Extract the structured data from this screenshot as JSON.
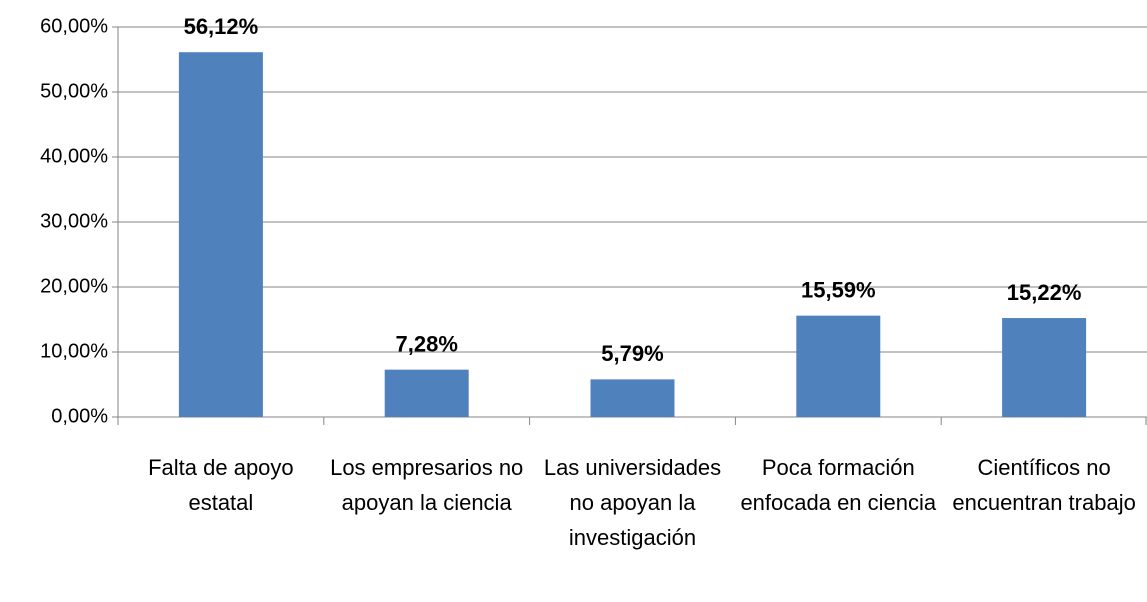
{
  "chart_data": {
    "type": "bar",
    "categories": [
      "Falta de apoyo estatal",
      "Los empresarios no apoyan la ciencia",
      "Las universidades no apoyan la investigación",
      "Poca formación enfocada en ciencia",
      "Científicos no encuentran trabajo"
    ],
    "values": [
      56.12,
      7.28,
      5.79,
      15.59,
      15.22
    ],
    "value_labels": [
      "56,12%",
      "7,28%",
      "5,79%",
      "15,59%",
      "15,22%"
    ],
    "color": "#4f81bd",
    "ylim": [
      0,
      60
    ],
    "yticks": [
      {
        "value": 0,
        "label": "0,00%"
      },
      {
        "value": 10,
        "label": "10,00%"
      },
      {
        "value": 20,
        "label": "20,00%"
      },
      {
        "value": 30,
        "label": "30,00%"
      },
      {
        "value": 40,
        "label": "40,00%"
      },
      {
        "value": 50,
        "label": "50,00%"
      },
      {
        "value": 60,
        "label": "60,00%"
      }
    ],
    "grid": true
  }
}
